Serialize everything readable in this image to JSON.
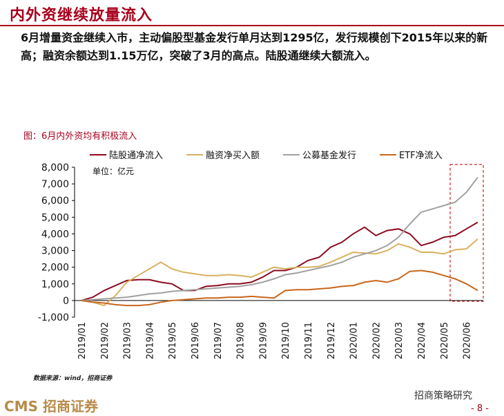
{
  "header": {
    "title": "内外资继续放量流入"
  },
  "summary": "6月增量资金继续入市，主动偏股型基金发行单月达到1295亿，发行规模创下2015年以来的新高；融资余额达到1.15万亿，突破了3月的高点。陆股通继续大额流入。",
  "footer": {
    "source": "数据来源：wind，招商证券",
    "logo": "CMS 招商证券",
    "account": "招商策略研究",
    "page": "- 8 -"
  },
  "chart_data": {
    "type": "line",
    "title": "图：6月内外资均有积极流入",
    "annotation": "单位：亿元",
    "categories": [
      "2019/01",
      null,
      "2019/02",
      null,
      "2019/03",
      null,
      "2019/04",
      null,
      "2019/05",
      null,
      "2019/06",
      null,
      "2019/07",
      null,
      "2019/08",
      null,
      "2019/09",
      null,
      "2019/10",
      null,
      "2019/11",
      null,
      "2019/12",
      null,
      "2020/01",
      null,
      "2020/02",
      null,
      "2020/03",
      null,
      "2020/04",
      null,
      "2020/05",
      null,
      "2020/06",
      null
    ],
    "series": [
      {
        "name": "陆股通净流入",
        "color": "#8b0a1e",
        "values": [
          0,
          200,
          600,
          900,
          1200,
          1250,
          1250,
          1100,
          1000,
          600,
          600,
          850,
          900,
          1000,
          1000,
          1100,
          1400,
          1800,
          1800,
          2000,
          2400,
          2600,
          3200,
          3500,
          4000,
          4400,
          3900,
          4200,
          4300,
          4000,
          3300,
          3500,
          3800,
          3900,
          4300,
          4700
        ]
      },
      {
        "name": "融资净买入额",
        "color": "#d8b060",
        "values": [
          0,
          -100,
          -300,
          300,
          1100,
          1500,
          1900,
          2300,
          1900,
          1700,
          1600,
          1500,
          1500,
          1550,
          1500,
          1400,
          1700,
          2000,
          1900,
          2000,
          2000,
          2050,
          2300,
          2600,
          2900,
          2850,
          2800,
          3000,
          3400,
          3200,
          2900,
          2900,
          2800,
          3050,
          3100,
          3700
        ]
      },
      {
        "name": "公募基金发行",
        "color": "#a0a0a0",
        "values": [
          0,
          50,
          100,
          150,
          200,
          300,
          400,
          450,
          550,
          600,
          650,
          700,
          750,
          800,
          850,
          950,
          1100,
          1300,
          1550,
          1650,
          1800,
          1950,
          2100,
          2300,
          2600,
          2800,
          3000,
          3300,
          3800,
          4600,
          5300,
          5500,
          5700,
          5900,
          6500,
          7400
        ]
      },
      {
        "name": "ETF净流入",
        "color": "#c8661a",
        "values": [
          0,
          -100,
          -150,
          -250,
          -300,
          -300,
          -250,
          -100,
          0,
          50,
          100,
          150,
          150,
          200,
          200,
          250,
          200,
          150,
          600,
          650,
          650,
          700,
          750,
          850,
          900,
          1100,
          1200,
          1100,
          1300,
          1750,
          1800,
          1700,
          1500,
          1300,
          1000,
          600
        ]
      }
    ],
    "ylim": [
      -1000,
      8000
    ],
    "yticks": [
      {
        "value": -1000,
        "label": "-1,000"
      },
      0,
      {
        "value": 1000,
        "label": "1,000"
      },
      {
        "value": 2000,
        "label": "2,000"
      },
      {
        "value": 3000,
        "label": "3,000"
      },
      {
        "value": 4000,
        "label": "4,000"
      },
      {
        "value": 5000,
        "label": "5,000"
      },
      {
        "value": 6000,
        "label": "6,000"
      },
      {
        "value": 7000,
        "label": "7,000"
      },
      {
        "value": 8000,
        "label": "8,000"
      }
    ],
    "legend": "top",
    "grid": false
  }
}
